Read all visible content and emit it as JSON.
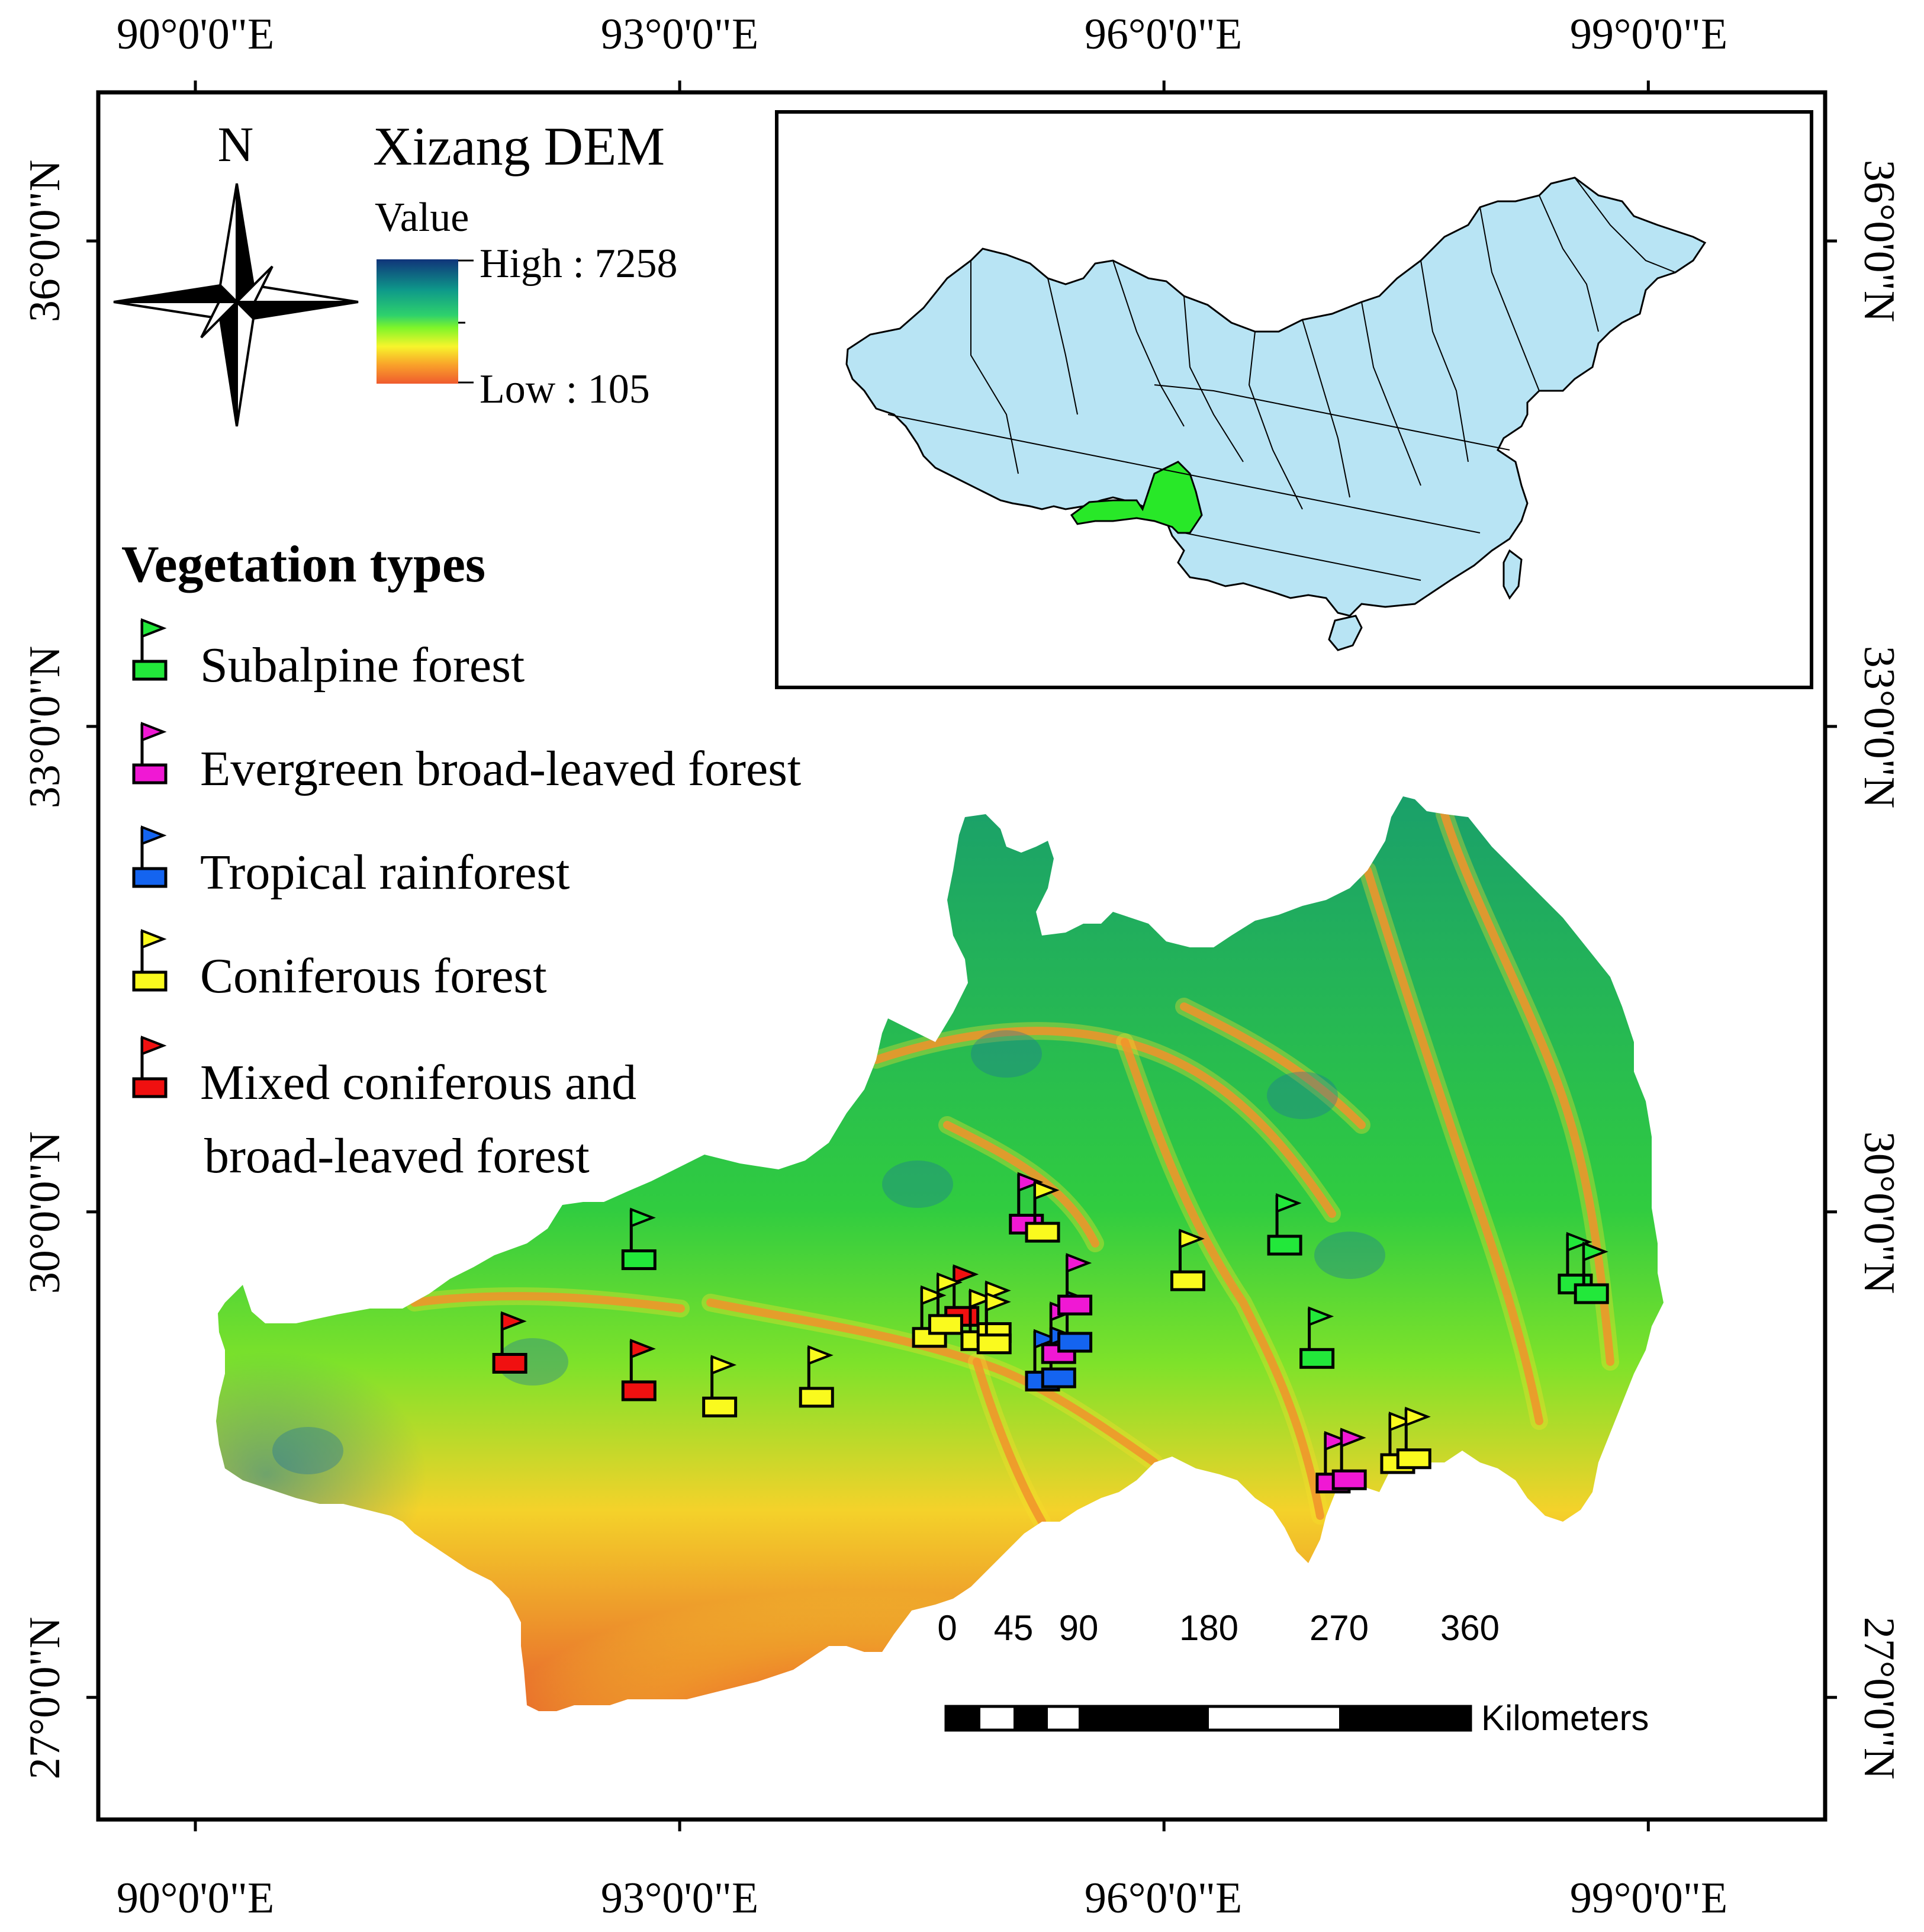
{
  "axes": {
    "top": [
      "90°0'0\"E",
      "93°0'0\"E",
      "96°0'0\"E",
      "99°0'0\"E"
    ],
    "bottom": [
      "90°0'0\"E",
      "93°0'0\"E",
      "96°0'0\"E",
      "99°0'0\"E"
    ],
    "left": [
      "36°0'0\"N",
      "33°0'0\"N",
      "30°0'0\"N",
      "27°0'0\"N"
    ],
    "right": [
      "36°0'0\"N",
      "33°0'0\"N",
      "30°0'0\"N",
      "27°0'0\"N"
    ]
  },
  "north_arrow": {
    "letter": "N",
    "icon": "compass-rose-icon"
  },
  "dem_legend": {
    "title": "Xizang DEM",
    "value_label": "Value",
    "high_label": "High : 7258",
    "low_label": "Low : 105",
    "colors": [
      "#10347a",
      "#0e9a8a",
      "#2ed16c",
      "#7ef52a",
      "#f7f52b",
      "#f9a12a",
      "#ef5b2e"
    ]
  },
  "vegetation_legend": {
    "title": "Vegetation types",
    "items": [
      {
        "label": "Subalpine forest",
        "color": "#22e83a"
      },
      {
        "label": "Evergreen broad-leaved forest",
        "color": "#f018d4"
      },
      {
        "label": "Tropical rainforest",
        "color": "#1464f0"
      },
      {
        "label": "Coniferous forest",
        "color": "#fafa1e"
      },
      {
        "label": "Mixed coniferous and",
        "label_line2": "broad-leaved forest",
        "color": "#f01010"
      }
    ]
  },
  "scale_bar": {
    "ticks": [
      "0",
      "45",
      "90",
      "180",
      "270",
      "360"
    ],
    "unit": "Kilometers"
  },
  "inset": {
    "fill": "#b8e4f4",
    "highlight": "#28e828",
    "border": "#000000"
  },
  "sites": [
    {
      "type": 4,
      "lon": 91.9,
      "lat": 29.09
    },
    {
      "type": 0,
      "lon": 92.7,
      "lat": 29.73
    },
    {
      "type": 4,
      "lon": 92.7,
      "lat": 28.92
    },
    {
      "type": 3,
      "lon": 93.2,
      "lat": 28.82
    },
    {
      "type": 3,
      "lon": 93.8,
      "lat": 28.88
    },
    {
      "type": 4,
      "lon": 94.7,
      "lat": 29.38
    },
    {
      "type": 3,
      "lon": 94.5,
      "lat": 29.25
    },
    {
      "type": 3,
      "lon": 94.6,
      "lat": 29.33
    },
    {
      "type": 3,
      "lon": 94.8,
      "lat": 29.23
    },
    {
      "type": 3,
      "lon": 94.9,
      "lat": 29.28
    },
    {
      "type": 3,
      "lon": 94.9,
      "lat": 29.21
    },
    {
      "type": 1,
      "lon": 95.1,
      "lat": 29.95
    },
    {
      "type": 3,
      "lon": 95.2,
      "lat": 29.9
    },
    {
      "type": 2,
      "lon": 95.2,
      "lat": 28.98
    },
    {
      "type": 2,
      "lon": 95.3,
      "lat": 29.0
    },
    {
      "type": 1,
      "lon": 95.3,
      "lat": 29.15
    },
    {
      "type": 2,
      "lon": 95.4,
      "lat": 29.22
    },
    {
      "type": 1,
      "lon": 95.4,
      "lat": 29.45
    },
    {
      "type": 3,
      "lon": 96.1,
      "lat": 29.6
    },
    {
      "type": 0,
      "lon": 96.7,
      "lat": 29.82
    },
    {
      "type": 0,
      "lon": 96.9,
      "lat": 29.12
    },
    {
      "type": 1,
      "lon": 97.0,
      "lat": 28.35
    },
    {
      "type": 1,
      "lon": 97.1,
      "lat": 28.37
    },
    {
      "type": 3,
      "lon": 97.4,
      "lat": 28.47
    },
    {
      "type": 3,
      "lon": 97.5,
      "lat": 28.5
    },
    {
      "type": 0,
      "lon": 98.5,
      "lat": 29.58
    },
    {
      "type": 0,
      "lon": 98.6,
      "lat": 29.52
    }
  ]
}
